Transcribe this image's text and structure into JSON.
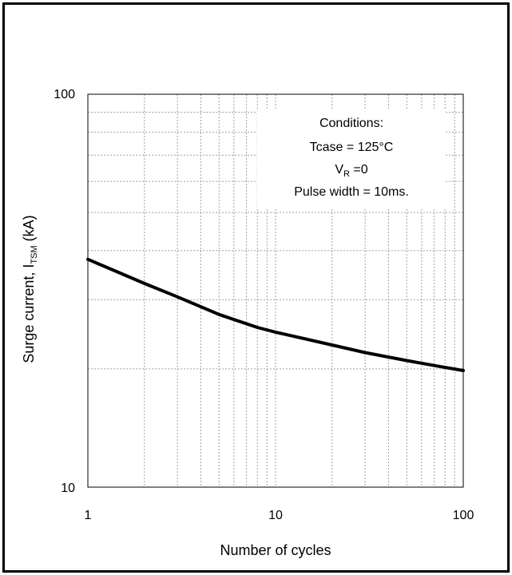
{
  "chart_data": {
    "type": "line",
    "xscale": "log",
    "yscale": "log",
    "xlim": [
      1,
      100
    ],
    "ylim": [
      10,
      100
    ],
    "xlabel": "Number of cycles",
    "ylabel": {
      "prefix": "Surge current, I",
      "subscript": "TSM",
      "suffix": " (kA)"
    },
    "x_ticks": [
      "1",
      "10",
      "100"
    ],
    "y_ticks": [
      "10",
      "100"
    ],
    "grid": true,
    "series": [
      {
        "x": [
          1,
          2,
          3,
          5,
          8,
          10,
          20,
          30,
          50,
          70,
          100
        ],
        "y": [
          38,
          33,
          30.5,
          27.5,
          25.5,
          24.8,
          23,
          22,
          21,
          20.4,
          19.8
        ]
      }
    ],
    "annotation": {
      "title": "Conditions:",
      "line1": "Tcase = 125°C",
      "line2_prefix": "V",
      "line2_subscript": "R",
      "line2_suffix": " =0",
      "line3": "Pulse width = 10ms."
    },
    "colors": {
      "line": "#000000",
      "grid": "#a0a0a0",
      "frame": "#000000"
    }
  }
}
